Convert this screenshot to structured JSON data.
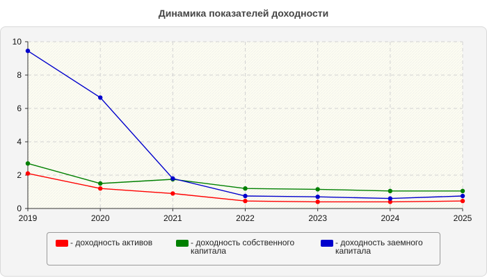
{
  "title": "Динамика показателей доходности",
  "chart_data": {
    "type": "line",
    "title": "Динамика показателей доходности",
    "xlabel": "",
    "ylabel": "",
    "x": [
      "2019",
      "2020",
      "2021",
      "2022",
      "2023",
      "2024",
      "2025"
    ],
    "ylim": [
      0,
      10
    ],
    "yticks": [
      0,
      2,
      4,
      6,
      8,
      10
    ],
    "grid": true,
    "legend_position": "bottom",
    "series": [
      {
        "name": "- доходность активов",
        "color": "#ff0000",
        "values": [
          2.1,
          1.2,
          0.9,
          0.45,
          0.4,
          0.4,
          0.45
        ]
      },
      {
        "name": "- доходность собственного капитала",
        "color": "#008000",
        "values": [
          2.7,
          1.5,
          1.75,
          1.2,
          1.15,
          1.05,
          1.05
        ]
      },
      {
        "name": "- доходность заемного капитала",
        "color": "#0000cc",
        "values": [
          9.45,
          6.65,
          1.8,
          0.75,
          0.7,
          0.6,
          0.75
        ]
      }
    ]
  }
}
